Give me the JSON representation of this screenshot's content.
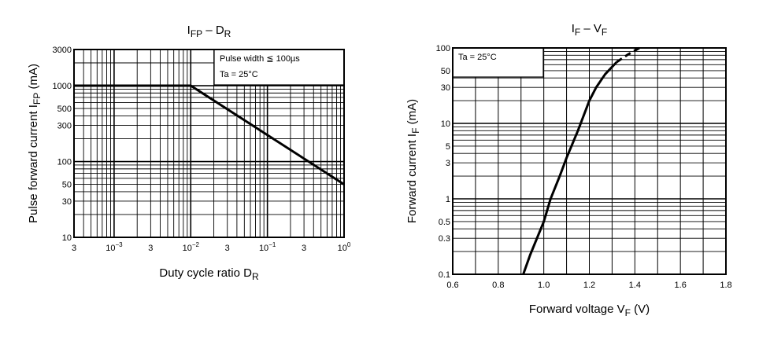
{
  "chart_data": [
    {
      "type": "line",
      "title": {
        "main": "I",
        "sub1": "FP",
        "dash": " – D",
        "sub2": "R"
      },
      "xlabel": {
        "main": "Duty cycle ratio   D",
        "sub": "R"
      },
      "ylabel": {
        "main": "Pulse forward current   I",
        "sub": "FP",
        "unit": "(mA)"
      },
      "xscale": "log",
      "yscale": "log",
      "xlim": [
        0.0003,
        1
      ],
      "ylim": [
        10,
        3000
      ],
      "xticks": [
        {
          "v": 0.0003,
          "label": "3"
        },
        {
          "v": 0.001,
          "base": "10",
          "exp": "−3"
        },
        {
          "v": 0.003,
          "label": "3"
        },
        {
          "v": 0.01,
          "base": "10",
          "exp": "−2"
        },
        {
          "v": 0.03,
          "label": "3"
        },
        {
          "v": 0.1,
          "base": "10",
          "exp": "−1"
        },
        {
          "v": 0.3,
          "label": "3"
        },
        {
          "v": 1,
          "base": "10",
          "exp": "0"
        }
      ],
      "yticks": [
        {
          "v": 3000,
          "label": "3000"
        },
        {
          "v": 1000,
          "label": "1000"
        },
        {
          "v": 500,
          "label": "500"
        },
        {
          "v": 300,
          "label": "300"
        },
        {
          "v": 100,
          "label": "100"
        },
        {
          "v": 50,
          "label": "50"
        },
        {
          "v": 30,
          "label": "30"
        },
        {
          "v": 10,
          "label": "10"
        }
      ],
      "legend": [
        "Pulse width  ≦  100µs",
        "Ta = 25°C"
      ],
      "legend_position": "top-right",
      "grid": true,
      "series": [
        {
          "name": "IFP",
          "x": [
            0.0003,
            0.01,
            1
          ],
          "y": [
            1000,
            1000,
            50
          ]
        }
      ]
    },
    {
      "type": "line",
      "title": {
        "main": "I",
        "sub1": "F",
        "dash": " – V",
        "sub2": "F"
      },
      "xlabel": {
        "main": "Forward voltage   V",
        "sub": "F",
        "unit": "(V)"
      },
      "ylabel": {
        "main": "Forward current   I",
        "sub": "F",
        "unit": "(mA)"
      },
      "xscale": "linear",
      "yscale": "log",
      "xlim": [
        0.6,
        1.8
      ],
      "ylim": [
        0.1,
        100
      ],
      "xticks": [
        {
          "v": 0.6,
          "label": "0.6"
        },
        {
          "v": 0.8,
          "label": "0.8"
        },
        {
          "v": 1.0,
          "label": "1.0"
        },
        {
          "v": 1.2,
          "label": "1.2"
        },
        {
          "v": 1.4,
          "label": "1.4"
        },
        {
          "v": 1.6,
          "label": "1.6"
        },
        {
          "v": 1.8,
          "label": "1.8"
        }
      ],
      "yticks": [
        {
          "v": 100,
          "label": "100"
        },
        {
          "v": 50,
          "label": "50"
        },
        {
          "v": 30,
          "label": "30"
        },
        {
          "v": 10,
          "label": "10"
        },
        {
          "v": 5,
          "label": "5"
        },
        {
          "v": 3,
          "label": "3"
        },
        {
          "v": 1,
          "label": "1"
        },
        {
          "v": 0.5,
          "label": "0.5"
        },
        {
          "v": 0.3,
          "label": "0.3"
        },
        {
          "v": 0.1,
          "label": "0.1"
        }
      ],
      "legend": [
        "Ta = 25°C"
      ],
      "legend_position": "top-left",
      "grid": true,
      "series": [
        {
          "name": "IF solid",
          "x": [
            0.91,
            0.94,
            0.97,
            1.0,
            1.03,
            1.07,
            1.1,
            1.15,
            1.2,
            1.23,
            1.27,
            1.32
          ],
          "y": [
            0.1,
            0.18,
            0.3,
            0.5,
            1.0,
            2.0,
            3.5,
            8,
            20,
            30,
            45,
            65
          ]
        },
        {
          "name": "IF dashed",
          "dashed": true,
          "x": [
            1.32,
            1.37,
            1.42
          ],
          "y": [
            65,
            82,
            100
          ]
        }
      ]
    }
  ]
}
